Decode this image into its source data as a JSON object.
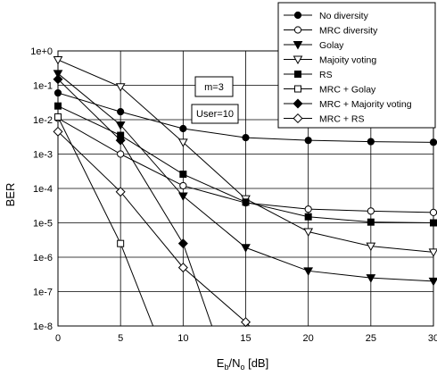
{
  "chart_data": {
    "type": "line",
    "x": [
      0,
      5,
      10,
      15,
      20,
      25,
      30
    ],
    "xlabel": "Eb/No [dB]",
    "xlabel_main": "E",
    "xlabel_sub1": "b",
    "xlabel_mid": "/N",
    "xlabel_sub2": "o",
    "xlabel_unit": " [dB]",
    "ylabel": "BER",
    "xlim": [
      0,
      30
    ],
    "ylim": [
      1e-08,
      1
    ],
    "yscale": "log",
    "xticks": [
      "0",
      "5",
      "10",
      "15",
      "20",
      "25",
      "30"
    ],
    "yticks": [
      "1e-8",
      "1e-7",
      "1e-6",
      "1e-5",
      "1e-4",
      "1e-3",
      "1e-2",
      "1e-1",
      "1e+0"
    ],
    "grid": true,
    "legend_position": "top-right",
    "annotations": [
      "m=3",
      "User=10"
    ],
    "series": [
      {
        "name": "No diversity",
        "marker": "circle-filled",
        "points": [
          [
            0,
            0.06
          ],
          [
            5,
            0.017
          ],
          [
            10,
            0.0055
          ],
          [
            15,
            0.003
          ],
          [
            20,
            0.0025
          ],
          [
            25,
            0.0023
          ],
          [
            30,
            0.0022
          ]
        ]
      },
      {
        "name": "MRC diversity",
        "marker": "circle-open",
        "points": [
          [
            0,
            0.011
          ],
          [
            5,
            0.001
          ],
          [
            10,
            0.00012
          ],
          [
            15,
            3.8e-05
          ],
          [
            20,
            2.5e-05
          ],
          [
            25,
            2.2e-05
          ],
          [
            30,
            2e-05
          ]
        ]
      },
      {
        "name": "Golay",
        "marker": "triangle-down-filled",
        "points": [
          [
            0,
            0.22
          ],
          [
            5,
            0.007
          ],
          [
            10,
            6e-05
          ],
          [
            15,
            1.9e-06
          ],
          [
            20,
            4e-07
          ],
          [
            25,
            2.5e-07
          ],
          [
            30,
            2e-07
          ]
        ]
      },
      {
        "name": "Majoity voting",
        "marker": "triangle-down-open",
        "points": [
          [
            0,
            0.55
          ],
          [
            5,
            0.09
          ],
          [
            10,
            0.0022
          ],
          [
            15,
            5e-05
          ],
          [
            20,
            5.5e-06
          ],
          [
            25,
            2.1e-06
          ],
          [
            30,
            1.4e-06
          ]
        ]
      },
      {
        "name": "RS",
        "marker": "square-filled",
        "points": [
          [
            0,
            0.025
          ],
          [
            5,
            0.0035
          ],
          [
            10,
            0.00026
          ],
          [
            15,
            4e-05
          ],
          [
            20,
            1.5e-05
          ],
          [
            25,
            1.05e-05
          ],
          [
            30,
            1e-05
          ]
        ]
      },
      {
        "name": "MRC + Golay",
        "marker": "square-open",
        "points": [
          [
            0,
            0.012
          ],
          [
            5,
            2.5e-06
          ],
          [
            7.6,
            1e-08
          ]
        ]
      },
      {
        "name": "MRC + Majority voting",
        "marker": "diamond-filled",
        "points": [
          [
            0,
            0.15
          ],
          [
            5,
            0.0025
          ],
          [
            10,
            2.5e-06
          ],
          [
            12.3,
            1e-08
          ]
        ]
      },
      {
        "name": "MRC + RS",
        "marker": "diamond-open",
        "points": [
          [
            0,
            0.0045
          ],
          [
            5,
            8e-05
          ],
          [
            10,
            5e-07
          ],
          [
            15,
            1.3e-08
          ],
          [
            15.3,
            1e-08
          ]
        ]
      }
    ]
  }
}
